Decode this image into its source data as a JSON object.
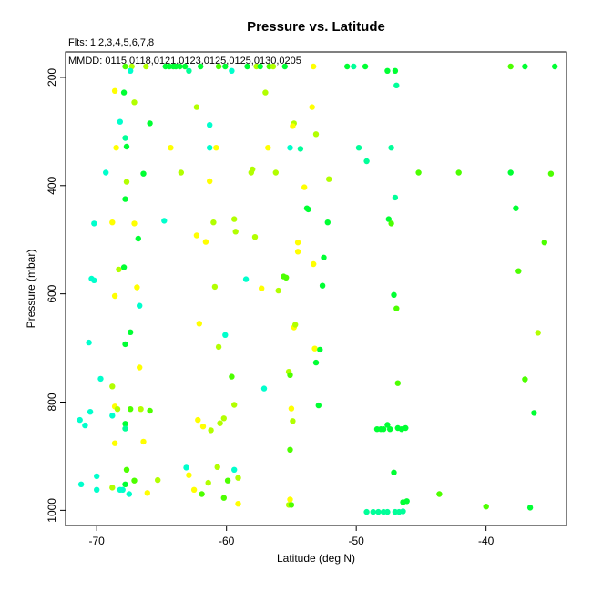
{
  "chart_data": {
    "type": "scatter",
    "title": "Pressure vs. Latitude",
    "subtitle_fits": "Flts: 1,2,3,4,5,6,7,8",
    "subtitle_mmdd": "MMDD: 0115,0118,0121,0123,0125,0125,0130,0205",
    "xlabel": "Latitude (deg N)",
    "ylabel": "Pressure (mbar)",
    "xlim": [
      -72.4,
      -33.8
    ],
    "ylim": [
      1028,
      153
    ],
    "y_reversed": true,
    "grid": false,
    "legend": "none",
    "x_ticks": [
      -70,
      -60,
      -50,
      -40
    ],
    "x_tick_labels": [
      "-70",
      "-60",
      "-50",
      "-40"
    ],
    "y_ticks": [
      200,
      400,
      600,
      800,
      1000
    ],
    "y_tick_labels": [
      "200",
      "400",
      "600",
      "800",
      "1000"
    ],
    "colors": {
      "yellow": "#ffff00",
      "chartreuse": "#b2ff00",
      "lime": "#4cff00",
      "green": "#00ff33",
      "springgreen": "#00ff99",
      "aquamarine": "#00ffcc"
    },
    "points": [
      {
        "x": -67.8,
        "y": 180,
        "c": "lime"
      },
      {
        "x": -67.3,
        "y": 180,
        "c": "chartreuse"
      },
      {
        "x": -67.4,
        "y": 188,
        "c": "aquamarine"
      },
      {
        "x": -66.2,
        "y": 180,
        "c": "chartreuse"
      },
      {
        "x": -64.7,
        "y": 180,
        "c": "green"
      },
      {
        "x": -64.4,
        "y": 180,
        "c": "green"
      },
      {
        "x": -64.1,
        "y": 180,
        "c": "green"
      },
      {
        "x": -63.9,
        "y": 180,
        "c": "green"
      },
      {
        "x": -63.6,
        "y": 180,
        "c": "green"
      },
      {
        "x": -63.2,
        "y": 180,
        "c": "green"
      },
      {
        "x": -62.9,
        "y": 188,
        "c": "springgreen"
      },
      {
        "x": -62.0,
        "y": 180,
        "c": "green"
      },
      {
        "x": -60.6,
        "y": 180,
        "c": "lime"
      },
      {
        "x": -60.1,
        "y": 180,
        "c": "green"
      },
      {
        "x": -59.6,
        "y": 188,
        "c": "aquamarine"
      },
      {
        "x": -58.4,
        "y": 180,
        "c": "green"
      },
      {
        "x": -57.7,
        "y": 180,
        "c": "chartreuse"
      },
      {
        "x": -57.4,
        "y": 180,
        "c": "green"
      },
      {
        "x": -56.7,
        "y": 180,
        "c": "lime"
      },
      {
        "x": -56.4,
        "y": 180,
        "c": "chartreuse"
      },
      {
        "x": -55.5,
        "y": 180,
        "c": "green"
      },
      {
        "x": -53.3,
        "y": 180,
        "c": "yellow"
      },
      {
        "x": -50.7,
        "y": 180,
        "c": "green"
      },
      {
        "x": -50.2,
        "y": 180,
        "c": "springgreen"
      },
      {
        "x": -49.3,
        "y": 180,
        "c": "green"
      },
      {
        "x": -47.6,
        "y": 188,
        "c": "green"
      },
      {
        "x": -47.0,
        "y": 188,
        "c": "green"
      },
      {
        "x": -38.1,
        "y": 180,
        "c": "lime"
      },
      {
        "x": -37.0,
        "y": 180,
        "c": "green"
      },
      {
        "x": -34.7,
        "y": 180,
        "c": "green"
      },
      {
        "x": -68.6,
        "y": 225,
        "c": "yellow"
      },
      {
        "x": -67.9,
        "y": 228,
        "c": "green"
      },
      {
        "x": -67.1,
        "y": 246,
        "c": "chartreuse"
      },
      {
        "x": -57.0,
        "y": 228,
        "c": "chartreuse"
      },
      {
        "x": -46.9,
        "y": 215,
        "c": "springgreen"
      },
      {
        "x": -62.3,
        "y": 255,
        "c": "chartreuse"
      },
      {
        "x": -53.4,
        "y": 255,
        "c": "yellow"
      },
      {
        "x": -68.2,
        "y": 282,
        "c": "aquamarine"
      },
      {
        "x": -65.9,
        "y": 285,
        "c": "green"
      },
      {
        "x": -61.3,
        "y": 288,
        "c": "aquamarine"
      },
      {
        "x": -54.8,
        "y": 285,
        "c": "chartreuse"
      },
      {
        "x": -54.9,
        "y": 290,
        "c": "yellow"
      },
      {
        "x": -67.8,
        "y": 312,
        "c": "springgreen"
      },
      {
        "x": -53.1,
        "y": 305,
        "c": "chartreuse"
      },
      {
        "x": -68.5,
        "y": 330,
        "c": "yellow"
      },
      {
        "x": -67.7,
        "y": 328,
        "c": "green"
      },
      {
        "x": -64.3,
        "y": 330,
        "c": "yellow"
      },
      {
        "x": -61.3,
        "y": 330,
        "c": "aquamarine"
      },
      {
        "x": -60.8,
        "y": 330,
        "c": "yellow"
      },
      {
        "x": -56.8,
        "y": 330,
        "c": "yellow"
      },
      {
        "x": -55.1,
        "y": 330,
        "c": "aquamarine"
      },
      {
        "x": -54.3,
        "y": 332,
        "c": "springgreen"
      },
      {
        "x": -49.8,
        "y": 330,
        "c": "springgreen"
      },
      {
        "x": -47.3,
        "y": 330,
        "c": "springgreen"
      },
      {
        "x": -49.2,
        "y": 355,
        "c": "springgreen"
      },
      {
        "x": -69.3,
        "y": 376,
        "c": "aquamarine"
      },
      {
        "x": -67.7,
        "y": 393,
        "c": "chartreuse"
      },
      {
        "x": -66.4,
        "y": 378,
        "c": "green"
      },
      {
        "x": -63.5,
        "y": 376,
        "c": "chartreuse"
      },
      {
        "x": -61.3,
        "y": 392,
        "c": "yellow"
      },
      {
        "x": -58.1,
        "y": 376,
        "c": "chartreuse"
      },
      {
        "x": -58.0,
        "y": 370,
        "c": "chartreuse"
      },
      {
        "x": -56.2,
        "y": 376,
        "c": "chartreuse"
      },
      {
        "x": -54.0,
        "y": 403,
        "c": "yellow"
      },
      {
        "x": -52.1,
        "y": 388,
        "c": "chartreuse"
      },
      {
        "x": -45.2,
        "y": 376,
        "c": "lime"
      },
      {
        "x": -42.1,
        "y": 376,
        "c": "lime"
      },
      {
        "x": -38.1,
        "y": 376,
        "c": "green"
      },
      {
        "x": -35.0,
        "y": 378,
        "c": "lime"
      },
      {
        "x": -67.8,
        "y": 425,
        "c": "green"
      },
      {
        "x": -47.0,
        "y": 422,
        "c": "springgreen"
      },
      {
        "x": -53.8,
        "y": 442,
        "c": "green"
      },
      {
        "x": -53.7,
        "y": 444,
        "c": "green"
      },
      {
        "x": -37.7,
        "y": 442,
        "c": "green"
      },
      {
        "x": -70.2,
        "y": 470,
        "c": "aquamarine"
      },
      {
        "x": -68.8,
        "y": 468,
        "c": "yellow"
      },
      {
        "x": -67.1,
        "y": 470,
        "c": "yellow"
      },
      {
        "x": -64.8,
        "y": 465,
        "c": "aquamarine"
      },
      {
        "x": -61.0,
        "y": 468,
        "c": "chartreuse"
      },
      {
        "x": -59.4,
        "y": 462,
        "c": "chartreuse"
      },
      {
        "x": -59.3,
        "y": 485,
        "c": "chartreuse"
      },
      {
        "x": -62.3,
        "y": 492,
        "c": "yellow"
      },
      {
        "x": -61.6,
        "y": 504,
        "c": "yellow"
      },
      {
        "x": -66.8,
        "y": 498,
        "c": "green"
      },
      {
        "x": -57.8,
        "y": 495,
        "c": "chartreuse"
      },
      {
        "x": -54.5,
        "y": 505,
        "c": "yellow"
      },
      {
        "x": -54.5,
        "y": 522,
        "c": "yellow"
      },
      {
        "x": -52.2,
        "y": 468,
        "c": "green"
      },
      {
        "x": -47.5,
        "y": 462,
        "c": "green"
      },
      {
        "x": -47.3,
        "y": 470,
        "c": "lime"
      },
      {
        "x": -35.5,
        "y": 505,
        "c": "lime"
      },
      {
        "x": -70.4,
        "y": 572,
        "c": "aquamarine"
      },
      {
        "x": -70.2,
        "y": 575,
        "c": "aquamarine"
      },
      {
        "x": -68.3,
        "y": 555,
        "c": "chartreuse"
      },
      {
        "x": -67.9,
        "y": 551,
        "c": "green"
      },
      {
        "x": -66.9,
        "y": 588,
        "c": "yellow"
      },
      {
        "x": -68.6,
        "y": 604,
        "c": "yellow"
      },
      {
        "x": -66.7,
        "y": 622,
        "c": "aquamarine"
      },
      {
        "x": -60.9,
        "y": 587,
        "c": "chartreuse"
      },
      {
        "x": -58.5,
        "y": 573,
        "c": "aquamarine"
      },
      {
        "x": -57.3,
        "y": 590,
        "c": "yellow"
      },
      {
        "x": -56.0,
        "y": 594,
        "c": "chartreuse"
      },
      {
        "x": -55.6,
        "y": 568,
        "c": "lime"
      },
      {
        "x": -55.4,
        "y": 570,
        "c": "lime"
      },
      {
        "x": -53.3,
        "y": 545,
        "c": "yellow"
      },
      {
        "x": -52.5,
        "y": 533,
        "c": "green"
      },
      {
        "x": -52.6,
        "y": 585,
        "c": "green"
      },
      {
        "x": -47.1,
        "y": 602,
        "c": "green"
      },
      {
        "x": -46.9,
        "y": 627,
        "c": "lime"
      },
      {
        "x": -37.5,
        "y": 558,
        "c": "lime"
      },
      {
        "x": -70.6,
        "y": 690,
        "c": "aquamarine"
      },
      {
        "x": -67.4,
        "y": 671,
        "c": "green"
      },
      {
        "x": -67.8,
        "y": 693,
        "c": "green"
      },
      {
        "x": -62.1,
        "y": 655,
        "c": "yellow"
      },
      {
        "x": -60.6,
        "y": 698,
        "c": "chartreuse"
      },
      {
        "x": -60.1,
        "y": 676,
        "c": "aquamarine"
      },
      {
        "x": -54.8,
        "y": 662,
        "c": "yellow"
      },
      {
        "x": -54.7,
        "y": 657,
        "c": "chartreuse"
      },
      {
        "x": -53.2,
        "y": 701,
        "c": "yellow"
      },
      {
        "x": -52.8,
        "y": 703,
        "c": "green"
      },
      {
        "x": -36.0,
        "y": 672,
        "c": "chartreuse"
      },
      {
        "x": -69.7,
        "y": 757,
        "c": "aquamarine"
      },
      {
        "x": -66.7,
        "y": 736,
        "c": "yellow"
      },
      {
        "x": -59.6,
        "y": 753,
        "c": "lime"
      },
      {
        "x": -57.1,
        "y": 775,
        "c": "aquamarine"
      },
      {
        "x": -55.2,
        "y": 744,
        "c": "chartreuse"
      },
      {
        "x": -55.1,
        "y": 750,
        "c": "lime"
      },
      {
        "x": -53.1,
        "y": 727,
        "c": "green"
      },
      {
        "x": -46.8,
        "y": 765,
        "c": "lime"
      },
      {
        "x": -37.0,
        "y": 758,
        "c": "lime"
      },
      {
        "x": -71.3,
        "y": 833,
        "c": "aquamarine"
      },
      {
        "x": -70.9,
        "y": 843,
        "c": "aquamarine"
      },
      {
        "x": -70.5,
        "y": 818,
        "c": "aquamarine"
      },
      {
        "x": -68.8,
        "y": 771,
        "c": "chartreuse"
      },
      {
        "x": -68.6,
        "y": 808,
        "c": "yellow"
      },
      {
        "x": -68.4,
        "y": 813,
        "c": "chartreuse"
      },
      {
        "x": -68.8,
        "y": 825,
        "c": "aquamarine"
      },
      {
        "x": -67.8,
        "y": 840,
        "c": "green"
      },
      {
        "x": -67.8,
        "y": 849,
        "c": "springgreen"
      },
      {
        "x": -67.4,
        "y": 813,
        "c": "lime"
      },
      {
        "x": -66.6,
        "y": 813,
        "c": "chartreuse"
      },
      {
        "x": -65.9,
        "y": 816,
        "c": "lime"
      },
      {
        "x": -68.6,
        "y": 876,
        "c": "yellow"
      },
      {
        "x": -66.4,
        "y": 873,
        "c": "yellow"
      },
      {
        "x": -62.2,
        "y": 833,
        "c": "yellow"
      },
      {
        "x": -61.8,
        "y": 845,
        "c": "yellow"
      },
      {
        "x": -61.2,
        "y": 852,
        "c": "chartreuse"
      },
      {
        "x": -60.5,
        "y": 839,
        "c": "chartreuse"
      },
      {
        "x": -60.2,
        "y": 830,
        "c": "chartreuse"
      },
      {
        "x": -59.4,
        "y": 805,
        "c": "chartreuse"
      },
      {
        "x": -55.0,
        "y": 812,
        "c": "yellow"
      },
      {
        "x": -54.9,
        "y": 835,
        "c": "chartreuse"
      },
      {
        "x": -55.1,
        "y": 888,
        "c": "lime"
      },
      {
        "x": -52.9,
        "y": 806,
        "c": "green"
      },
      {
        "x": -48.4,
        "y": 850,
        "c": "green"
      },
      {
        "x": -48.1,
        "y": 850,
        "c": "green"
      },
      {
        "x": -47.9,
        "y": 850,
        "c": "green"
      },
      {
        "x": -47.6,
        "y": 842,
        "c": "green"
      },
      {
        "x": -47.4,
        "y": 850,
        "c": "green"
      },
      {
        "x": -46.8,
        "y": 848,
        "c": "green"
      },
      {
        "x": -46.5,
        "y": 850,
        "c": "green"
      },
      {
        "x": -46.2,
        "y": 848,
        "c": "green"
      },
      {
        "x": -36.3,
        "y": 820,
        "c": "green"
      },
      {
        "x": -71.2,
        "y": 952,
        "c": "aquamarine"
      },
      {
        "x": -70.0,
        "y": 937,
        "c": "aquamarine"
      },
      {
        "x": -70.0,
        "y": 962,
        "c": "aquamarine"
      },
      {
        "x": -68.8,
        "y": 958,
        "c": "chartreuse"
      },
      {
        "x": -68.2,
        "y": 962,
        "c": "aquamarine"
      },
      {
        "x": -68.0,
        "y": 962,
        "c": "aquamarine"
      },
      {
        "x": -67.8,
        "y": 952,
        "c": "green"
      },
      {
        "x": -67.7,
        "y": 925,
        "c": "lime"
      },
      {
        "x": -67.5,
        "y": 970,
        "c": "aquamarine"
      },
      {
        "x": -67.1,
        "y": 945,
        "c": "lime"
      },
      {
        "x": -66.1,
        "y": 968,
        "c": "yellow"
      },
      {
        "x": -65.3,
        "y": 944,
        "c": "chartreuse"
      },
      {
        "x": -63.1,
        "y": 921,
        "c": "aquamarine"
      },
      {
        "x": -62.9,
        "y": 935,
        "c": "yellow"
      },
      {
        "x": -62.5,
        "y": 962,
        "c": "yellow"
      },
      {
        "x": -61.9,
        "y": 970,
        "c": "lime"
      },
      {
        "x": -61.4,
        "y": 949,
        "c": "chartreuse"
      },
      {
        "x": -60.7,
        "y": 920,
        "c": "chartreuse"
      },
      {
        "x": -60.2,
        "y": 977,
        "c": "lime"
      },
      {
        "x": -59.9,
        "y": 945,
        "c": "lime"
      },
      {
        "x": -59.4,
        "y": 925,
        "c": "aquamarine"
      },
      {
        "x": -59.1,
        "y": 940,
        "c": "chartreuse"
      },
      {
        "x": -59.1,
        "y": 988,
        "c": "yellow"
      },
      {
        "x": -55.2,
        "y": 990,
        "c": "chartreuse"
      },
      {
        "x": -55.1,
        "y": 980,
        "c": "yellow"
      },
      {
        "x": -55.0,
        "y": 990,
        "c": "lime"
      },
      {
        "x": -49.2,
        "y": 1003,
        "c": "springgreen"
      },
      {
        "x": -48.7,
        "y": 1003,
        "c": "springgreen"
      },
      {
        "x": -48.3,
        "y": 1003,
        "c": "springgreen"
      },
      {
        "x": -47.9,
        "y": 1003,
        "c": "springgreen"
      },
      {
        "x": -47.6,
        "y": 1003,
        "c": "springgreen"
      },
      {
        "x": -47.1,
        "y": 930,
        "c": "green"
      },
      {
        "x": -47.0,
        "y": 1003,
        "c": "springgreen"
      },
      {
        "x": -46.7,
        "y": 1003,
        "c": "springgreen"
      },
      {
        "x": -46.4,
        "y": 1002,
        "c": "springgreen"
      },
      {
        "x": -46.4,
        "y": 985,
        "c": "green"
      },
      {
        "x": -46.1,
        "y": 983,
        "c": "green"
      },
      {
        "x": -43.6,
        "y": 970,
        "c": "lime"
      },
      {
        "x": -40.0,
        "y": 993,
        "c": "lime"
      },
      {
        "x": -36.6,
        "y": 995,
        "c": "green"
      }
    ]
  }
}
